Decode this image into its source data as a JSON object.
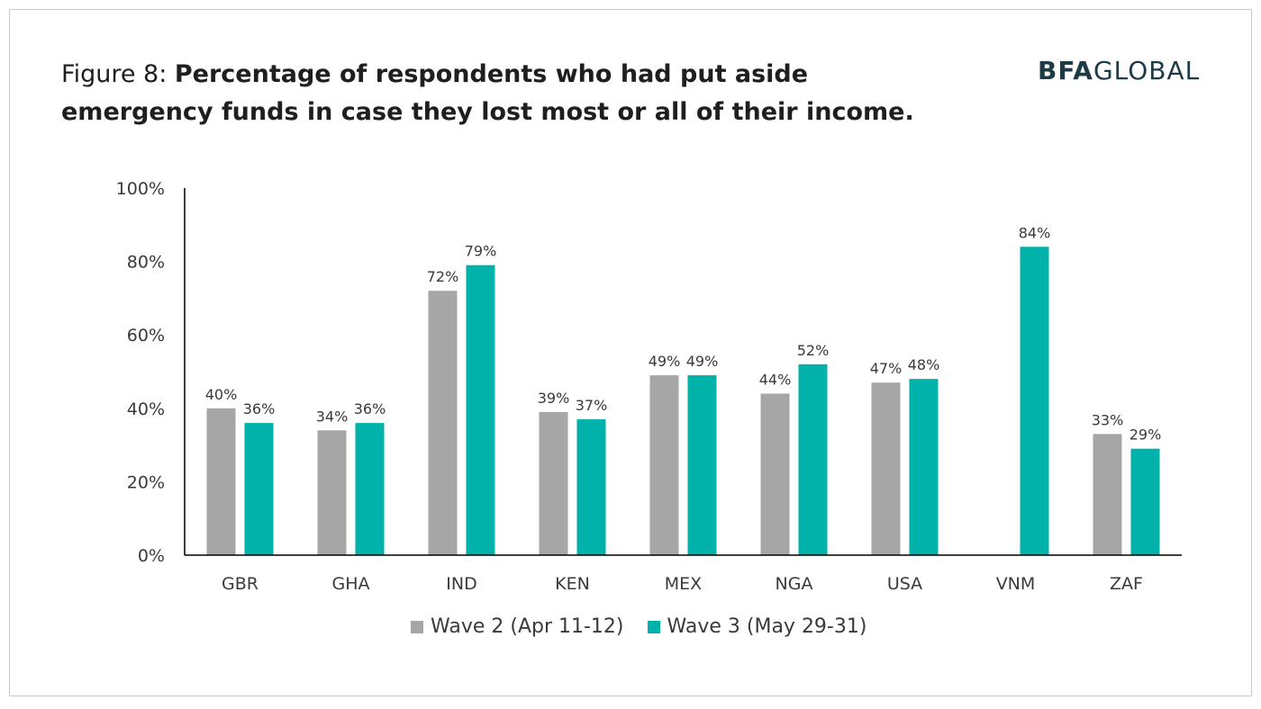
{
  "title": {
    "prefix": "Figure 8: ",
    "bold": "Percentage of respondents who had put aside emergency funds in case they lost most or all of their income."
  },
  "logo": {
    "part1": "BFA",
    "part2": "GLOBAL"
  },
  "colors": {
    "wave2": "#a6a6a6",
    "wave3": "#00b2a9",
    "axis": "#000000"
  },
  "chart_data": {
    "type": "bar",
    "categories": [
      "GBR",
      "GHA",
      "IND",
      "KEN",
      "MEX",
      "NGA",
      "USA",
      "VNM",
      "ZAF"
    ],
    "series": [
      {
        "name": "Wave 2 (Apr 11-12)",
        "values": [
          40,
          34,
          72,
          39,
          49,
          44,
          47,
          null,
          33
        ],
        "labels": [
          "40%",
          "34%",
          "72%",
          "39%",
          "49%",
          "44%",
          "47%",
          "",
          "33%"
        ]
      },
      {
        "name": "Wave 3 (May 29-31)",
        "values": [
          36,
          36,
          79,
          37,
          49,
          52,
          48,
          84,
          29
        ],
        "labels": [
          "36%",
          "36%",
          "79%",
          "37%",
          "49%",
          "52%",
          "48%",
          "84%",
          "29%"
        ]
      }
    ],
    "yticks": [
      "0%",
      "20%",
      "40%",
      "60%",
      "80%",
      "100%"
    ],
    "ylim": [
      0,
      100
    ],
    "grid": false,
    "legend_position": "bottom"
  }
}
